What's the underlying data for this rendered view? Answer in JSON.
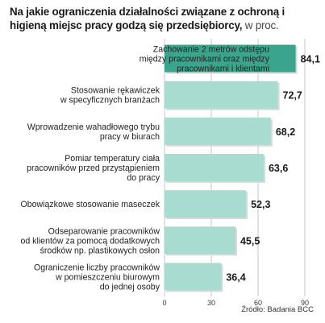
{
  "title_bold": "Na jakie ograniczenia działalności związane z ochroną i higieną miejsc pracy godzą się przedsiębiorcy,",
  "title_unit": "w proc.",
  "source": "Źródło: Badania BCC",
  "colors": {
    "highlight": "#3aa58c",
    "bar": "#a9dcd0",
    "grid": "#b8b8b8"
  },
  "chart_data": {
    "type": "bar",
    "orientation": "horizontal",
    "categories": [
      [
        "Zachowanie 2 metrów odstępu",
        "między pracownikami oraz między",
        "pracownikami i klientami"
      ],
      [
        "Stosowanie rękawiczek",
        "w specyficznych branżach"
      ],
      [
        "Wprowadzenie wahadłowego trybu",
        "pracy w biurach"
      ],
      [
        "Pomiar temperatury ciała",
        "pracowników przed przystąpieniem",
        "do pracy"
      ],
      [
        "Obowiązkowe stosowanie maseczek"
      ],
      [
        "Odseparowanie pracowników",
        "od klientów za pomocą dodatkowych",
        "środków np. plastikowych osłon"
      ],
      [
        "Ograniczenie liczby pracowników",
        "w pomieszczeniu biurowym",
        "do jednej osoby"
      ]
    ],
    "values": [
      84.1,
      72.7,
      68.2,
      63.6,
      52.3,
      45.5,
      36.4
    ],
    "value_labels": [
      "84,1",
      "72,7",
      "68,2",
      "63,6",
      "52,3",
      "45,5",
      "36,4"
    ],
    "highlight_index": 0,
    "xlim": [
      0,
      90
    ],
    "xticks": [
      0,
      30,
      60,
      90
    ],
    "grid": true
  }
}
